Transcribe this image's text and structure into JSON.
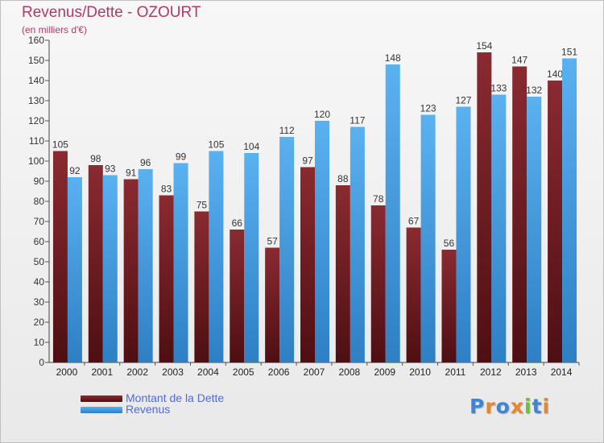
{
  "header": {
    "title": "Revenus/Dette - OZOURT",
    "subtitle": "(en milliers d'€)"
  },
  "chart_data": {
    "type": "bar",
    "categories": [
      "2000",
      "2001",
      "2002",
      "2003",
      "2004",
      "2005",
      "2006",
      "2007",
      "2008",
      "2009",
      "2010",
      "2011",
      "2012",
      "2013",
      "2014"
    ],
    "series": [
      {
        "name": "Montant de la Dette",
        "color": "#7a1f25",
        "values": [
          105,
          98,
          91,
          83,
          75,
          66,
          57,
          97,
          88,
          78,
          67,
          56,
          154,
          147,
          140
        ]
      },
      {
        "name": "Revenus",
        "color": "#4aa3e6",
        "values": [
          92,
          93,
          96,
          99,
          105,
          104,
          112,
          120,
          117,
          148,
          123,
          127,
          133,
          132,
          151
        ]
      }
    ],
    "ylim": [
      0,
      160
    ],
    "ytick_step": 10,
    "grid": false,
    "legend_position": "bottom-left"
  },
  "legend": {
    "items": [
      {
        "label": "Montant de la Dette",
        "color": "#7a1f25"
      },
      {
        "label": "Revenus",
        "color": "#4aa3e6"
      }
    ]
  },
  "logo": {
    "letters": [
      "P",
      "r",
      "o",
      "x",
      "i",
      "t",
      "i"
    ],
    "colors": [
      "#3b86d6",
      "#e5872d",
      "#3b86d6",
      "#e5872d",
      "#6cbf3b",
      "#3b86d6",
      "#e5872d"
    ]
  }
}
